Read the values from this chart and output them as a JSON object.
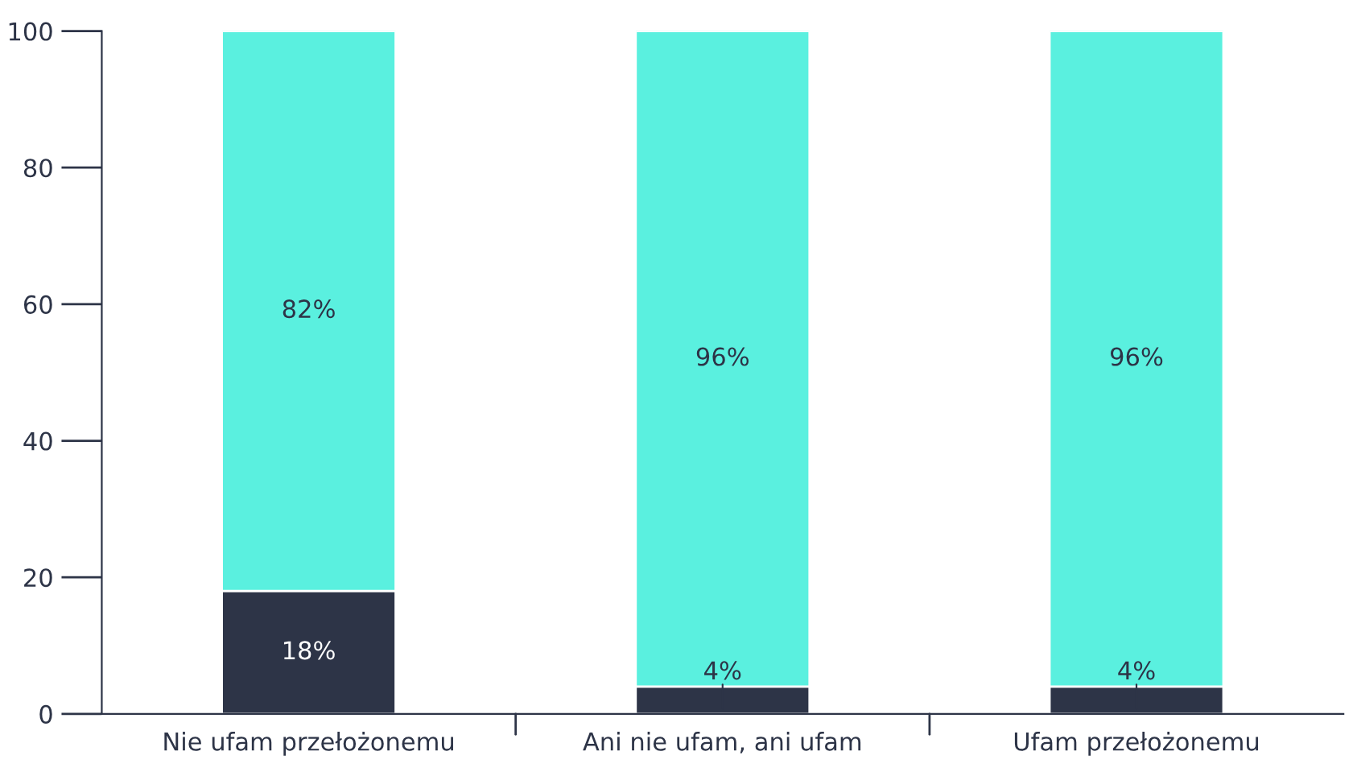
{
  "chart_data": {
    "type": "bar",
    "stacked": true,
    "categories": [
      "Nie ufam przełożonemu",
      "Ani nie ufam, ani ufam",
      "Ufam przełożonemu"
    ],
    "series": [
      {
        "color": "#2d3447",
        "values": [
          18,
          4,
          4
        ],
        "value_labels": [
          "18%",
          "4%",
          "4%"
        ]
      },
      {
        "color": "#5af0df",
        "values": [
          82,
          96,
          96
        ],
        "value_labels": [
          "82%",
          "96%",
          "96%"
        ]
      }
    ],
    "ylim": [
      0,
      100
    ],
    "yticks": [
      0,
      20,
      40,
      60,
      80,
      100
    ],
    "grid": false,
    "legend": false
  }
}
